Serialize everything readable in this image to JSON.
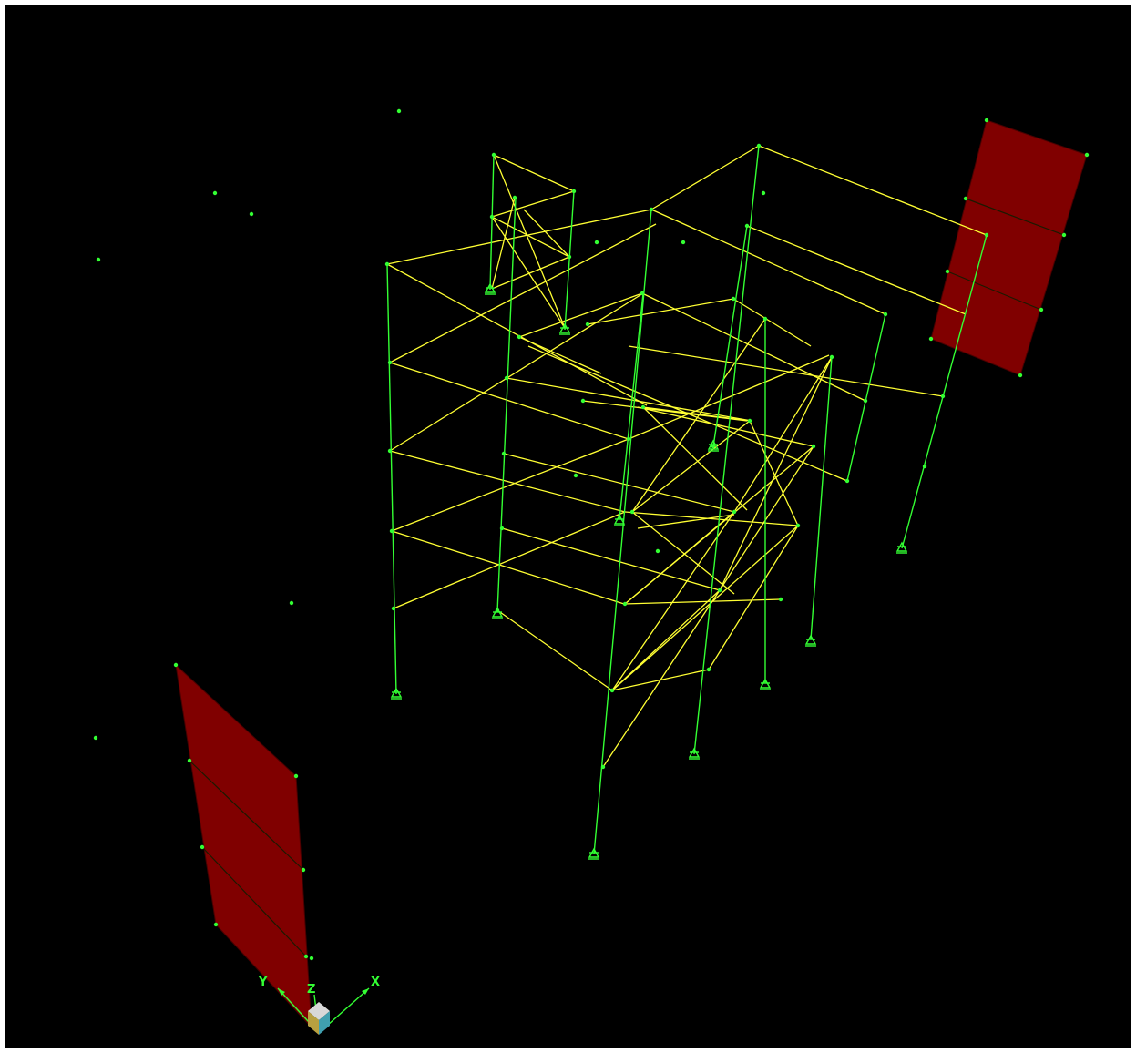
{
  "viewport": {
    "background": "#000000",
    "colors": {
      "frame_member": "#ffff33",
      "column_member": "#33ff33",
      "joint": "#33ff33",
      "area_fill": "#800000",
      "area_edge": "#1a1a00"
    }
  },
  "axes": {
    "x_label": "X",
    "y_label": "Y",
    "z_label": "Z",
    "icon": "view-cube-icon"
  }
}
